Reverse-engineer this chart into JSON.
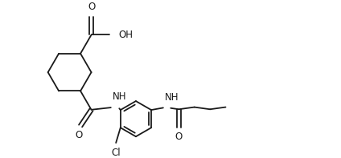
{
  "background": "#ffffff",
  "line_color": "#1a1a1a",
  "lw": 1.3,
  "fs": 8.5,
  "xlim": [
    0,
    10.5
  ],
  "ylim": [
    0,
    4.9
  ],
  "figsize": [
    4.24,
    1.97
  ],
  "dpi": 100
}
